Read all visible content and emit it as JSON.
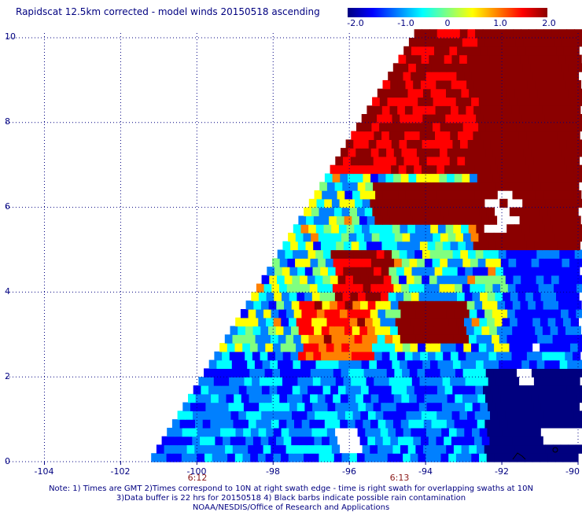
{
  "title": "Rapidscat 12.5km corrected - model winds 20150518 ascending",
  "colorbar": {
    "labels": [
      "-2.0",
      "-1.0",
      "0",
      "1.0",
      "2.0"
    ],
    "stops": [
      "#00007f",
      "#0000ff",
      "#0080ff",
      "#00ffff",
      "#80ff80",
      "#ffff00",
      "#ff8000",
      "#ff0000",
      "#8b0000"
    ]
  },
  "axes": {
    "y_ticks": [
      "0",
      "2",
      "4",
      "6",
      "8",
      "10"
    ],
    "x_ticks": [
      "-104",
      "-102",
      "-100",
      "-98",
      "-96",
      "-94",
      "-92",
      "-90"
    ],
    "time_labels": [
      "6:12",
      "6:13"
    ]
  },
  "notes": {
    "line1": "Note: 1) Times are GMT 2)Times correspond to 10N at right swath edge - time is right swath for overlapping swaths at 10N",
    "line2": "3)Data buffer is 22 hrs for 20150518 4) Black barbs indicate possible rain contamination",
    "line3": "NOAA/NESDIS/Office of Research and Applications"
  },
  "chart_data": {
    "type": "heatmap",
    "title": "Rapidscat 12.5km corrected - model winds 20150518 ascending",
    "xlim": [
      -105,
      -90
    ],
    "ylim": [
      0,
      10
    ],
    "x_ticks": [
      -104,
      -102,
      -100,
      -98,
      -96,
      -94,
      -92,
      -90
    ],
    "y_ticks": [
      0,
      2,
      4,
      6,
      8,
      10
    ],
    "value_range": [
      -2.0,
      2.0
    ],
    "grid": true
  }
}
